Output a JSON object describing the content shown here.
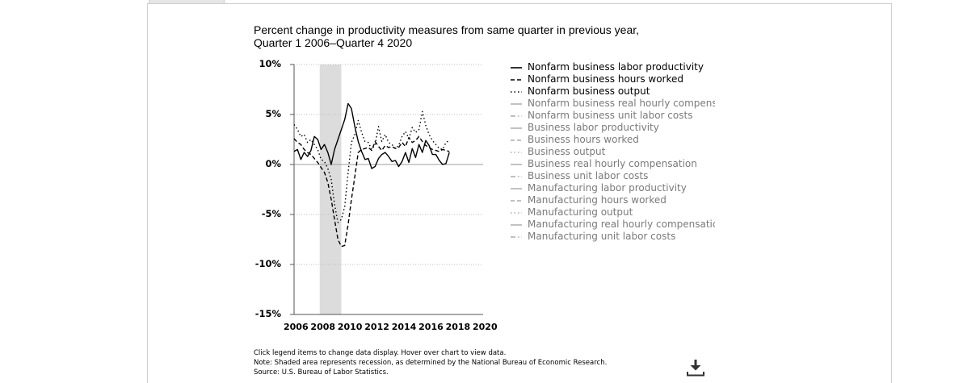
{
  "chart_data": {
    "type": "line",
    "title_line1": "Percent change in productivity measures from same quarter in previous year,",
    "title_line2": "Quarter 1 2006–Quarter 4 2020",
    "ylim": [
      -15,
      10
    ],
    "yticks": [
      "10%",
      "5%",
      "0%",
      "-5%",
      "-10%",
      "-15%"
    ],
    "ytick_values": [
      10,
      5,
      0,
      -5,
      -10,
      -15
    ],
    "xlim": [
      2006,
      2020
    ],
    "xticks": [
      "2006",
      "2008",
      "2010",
      "2012",
      "2014",
      "2016",
      "2018",
      "2020"
    ],
    "xtick_values": [
      2006,
      2008,
      2010,
      2012,
      2014,
      2016,
      2018,
      2020
    ],
    "recession": [
      2007.9,
      2009.5
    ],
    "grid": "horizontal dotted",
    "legend_position": "right",
    "series": [
      {
        "name": "Nonfarm business labor productivity",
        "dash": "solid",
        "visible": true,
        "x": [
          2006.0,
          2006.25,
          2006.5,
          2006.75,
          2007.0,
          2007.25,
          2007.5,
          2007.75,
          2008.0,
          2008.25,
          2008.5,
          2008.75,
          2009.0,
          2009.25,
          2009.5,
          2009.75,
          2010.0,
          2010.25,
          2010.5,
          2010.75,
          2011.0,
          2011.25,
          2011.5,
          2011.75,
          2012.0,
          2012.25,
          2012.5,
          2012.75,
          2013.0,
          2013.25,
          2013.5,
          2013.75,
          2014.0,
          2014.25,
          2014.5,
          2014.75,
          2015.0,
          2015.25,
          2015.5,
          2015.75,
          2016.0,
          2016.25,
          2016.5,
          2016.75,
          2017.0,
          2017.25,
          2017.5
        ],
        "y": [
          1.3,
          1.5,
          0.5,
          1.2,
          0.8,
          1.4,
          2.8,
          2.5,
          1.5,
          2.0,
          1.2,
          0.0,
          1.5,
          2.5,
          3.5,
          4.5,
          6.1,
          5.6,
          3.8,
          2.3,
          1.3,
          0.5,
          0.6,
          -0.4,
          -0.2,
          0.6,
          1.0,
          1.2,
          0.8,
          0.3,
          0.4,
          -0.2,
          0.3,
          1.2,
          0.2,
          1.6,
          0.7,
          2.0,
          1.2,
          2.4,
          1.9,
          1.0,
          1.0,
          0.4,
          0.0,
          0.1,
          1.2
        ]
      },
      {
        "name": "Nonfarm business hours worked",
        "dash": "dashed",
        "visible": true,
        "x": [
          2006.0,
          2006.25,
          2006.5,
          2006.75,
          2007.0,
          2007.25,
          2007.5,
          2007.75,
          2008.0,
          2008.25,
          2008.5,
          2008.75,
          2009.0,
          2009.25,
          2009.5,
          2009.75,
          2010.0,
          2010.25,
          2010.5,
          2010.75,
          2011.0,
          2011.25,
          2011.5,
          2011.75,
          2012.0,
          2012.25,
          2012.5,
          2012.75,
          2013.0,
          2013.25,
          2013.5,
          2013.75,
          2014.0,
          2014.25,
          2014.5,
          2014.75,
          2015.0,
          2015.25,
          2015.5,
          2015.75,
          2016.0,
          2016.25,
          2016.5,
          2016.75,
          2017.0,
          2017.25,
          2017.5
        ],
        "y": [
          2.6,
          2.2,
          2.0,
          1.5,
          1.2,
          1.0,
          0.6,
          0.2,
          -0.3,
          -0.8,
          -1.8,
          -3.5,
          -5.5,
          -7.5,
          -8.2,
          -8.1,
          -6.0,
          -3.5,
          -1.2,
          1.2,
          1.5,
          1.6,
          1.7,
          1.4,
          2.3,
          1.8,
          1.4,
          1.9,
          1.7,
          1.8,
          1.6,
          1.7,
          2.2,
          1.8,
          2.7,
          2.2,
          2.4,
          2.8,
          2.3,
          1.9,
          1.7,
          1.5,
          1.4,
          1.3,
          1.5,
          1.4,
          1.3
        ]
      },
      {
        "name": "Nonfarm business output",
        "dash": "dotted",
        "visible": true,
        "x": [
          2006.0,
          2006.25,
          2006.5,
          2006.75,
          2007.0,
          2007.25,
          2007.5,
          2007.75,
          2008.0,
          2008.25,
          2008.5,
          2008.75,
          2009.0,
          2009.25,
          2009.5,
          2009.75,
          2010.0,
          2010.25,
          2010.5,
          2010.75,
          2011.0,
          2011.25,
          2011.5,
          2011.75,
          2012.0,
          2012.25,
          2012.5,
          2012.75,
          2013.0,
          2013.25,
          2013.5,
          2013.75,
          2014.0,
          2014.25,
          2014.5,
          2014.75,
          2015.0,
          2015.25,
          2015.5,
          2015.75,
          2016.0,
          2016.25,
          2016.5,
          2016.75,
          2017.0,
          2017.25,
          2017.5
        ],
        "y": [
          4.0,
          3.5,
          2.8,
          3.0,
          2.2,
          2.5,
          2.0,
          1.5,
          0.5,
          0.3,
          -0.4,
          -1.5,
          -4.0,
          -5.8,
          -5.5,
          -4.2,
          -0.8,
          2.2,
          3.0,
          4.4,
          3.2,
          2.3,
          2.2,
          1.5,
          2.0,
          3.8,
          2.3,
          3.0,
          2.2,
          2.0,
          1.6,
          1.9,
          2.8,
          3.3,
          2.6,
          3.7,
          3.2,
          3.5,
          5.3,
          3.9,
          3.0,
          2.4,
          2.0,
          1.6,
          1.5,
          2.2,
          2.4
        ]
      },
      {
        "name": "Nonfarm business real hourly compensation",
        "dash": "solid",
        "visible": false
      },
      {
        "name": "Nonfarm business unit labor costs",
        "dash": "dashdot",
        "visible": false
      },
      {
        "name": "Business labor productivity",
        "dash": "solid",
        "visible": false
      },
      {
        "name": "Business hours worked",
        "dash": "dashed",
        "visible": false
      },
      {
        "name": "Business output",
        "dash": "dotted",
        "visible": false
      },
      {
        "name": "Business real hourly compensation",
        "dash": "solid",
        "visible": false
      },
      {
        "name": "Business unit labor costs",
        "dash": "dashdot",
        "visible": false
      },
      {
        "name": "Manufacturing labor productivity",
        "dash": "solid",
        "visible": false
      },
      {
        "name": "Manufacturing hours worked",
        "dash": "dashed",
        "visible": false
      },
      {
        "name": "Manufacturing output",
        "dash": "dotted",
        "visible": false
      },
      {
        "name": "Manufacturing real hourly compensation",
        "dash": "solid",
        "visible": false
      },
      {
        "name": "Manufacturing unit labor costs",
        "dash": "dashdot",
        "visible": false
      }
    ]
  },
  "legend_labels": [
    "Nonfarm business labor productivity",
    "Nonfarm business hours worked",
    "Nonfarm business output",
    "Nonfarm business real hourly compens",
    "Nonfarm business unit labor costs",
    "Business labor productivity",
    "Business hours worked",
    "Business output",
    "Business real hourly compensation",
    "Business unit labor costs",
    "Manufacturing labor productivity",
    "Manufacturing hours worked",
    "Manufacturing output",
    "Manufacturing real hourly compensatic",
    "Manufacturing unit labor costs"
  ],
  "notes": {
    "line1": "Click legend items to change data display. Hover over chart to view data.",
    "line2": "Note: Shaded area represents recession, as determined by the National Bureau of Economic Research.",
    "line3": "Source: U.S. Bureau of Labor Statistics."
  },
  "icons": {
    "download": "download-icon"
  },
  "colors": {
    "recession": "#dcdcdc",
    "active_line": "#000000",
    "inactive_line": "#9a9a9a",
    "grid": "#bdbdbd"
  }
}
